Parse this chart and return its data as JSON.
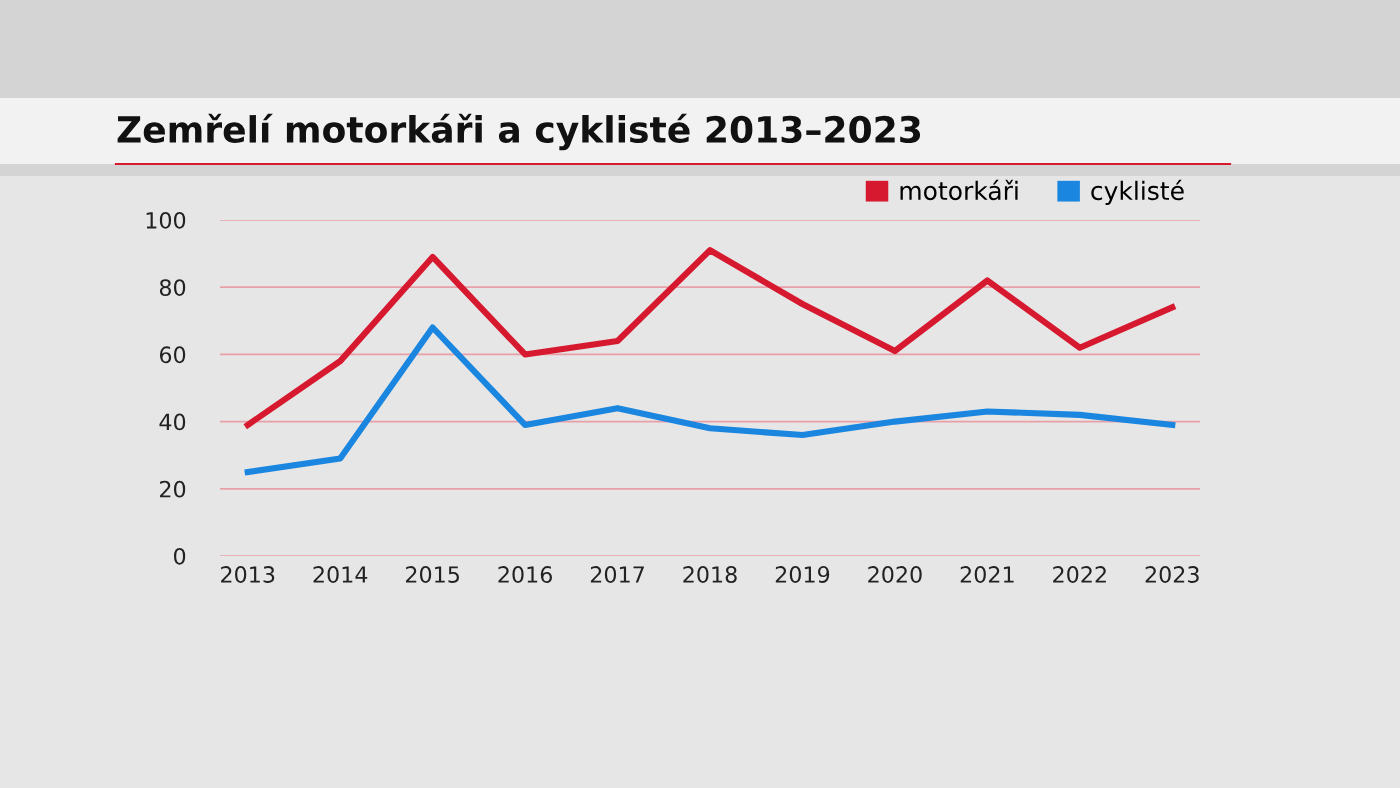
{
  "chart_data": {
    "type": "line",
    "title": "Zemřelí motorkáři a cyklisté 2013–2023",
    "categories": [
      "2013",
      "2014",
      "2015",
      "2016",
      "2017",
      "2018",
      "2019",
      "2020",
      "2021",
      "2022",
      "2023"
    ],
    "series": [
      {
        "name": "motorkáři",
        "color": "#d7192f",
        "values": [
          39,
          58,
          89,
          60,
          64,
          91,
          75,
          61,
          82,
          62,
          74
        ]
      },
      {
        "name": "cyklisté",
        "color": "#1a86e0",
        "values": [
          25,
          29,
          68,
          39,
          44,
          38,
          36,
          40,
          43,
          42,
          39
        ]
      }
    ],
    "ylim": [
      0,
      100
    ],
    "yticks": [
      0,
      20,
      40,
      60,
      80,
      100
    ],
    "grid": "y",
    "legend": "top right",
    "marker": "none",
    "line_style": "solid"
  }
}
